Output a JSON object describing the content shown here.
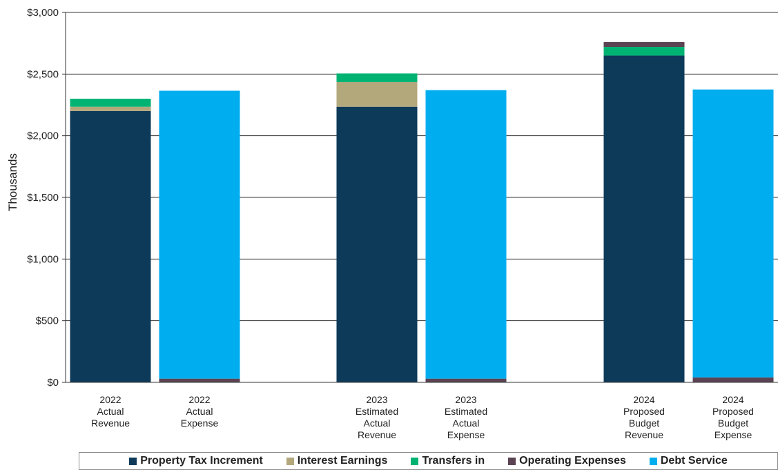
{
  "chart_data": {
    "type": "bar",
    "stacked": true,
    "ylabel": "Thousands",
    "ylim": [
      0,
      3000
    ],
    "yticks": [
      0,
      500,
      1000,
      1500,
      2000,
      2500,
      3000
    ],
    "ytick_labels": [
      "$0",
      "$500",
      "$1,000",
      "$1,500",
      "$2,000",
      "$2,500",
      "$3,000"
    ],
    "grid": true,
    "legend_position": "bottom",
    "categories": [
      [
        "2022",
        "Actual",
        "Revenue"
      ],
      [
        "2022",
        "Actual",
        "Expense"
      ],
      [
        "2023",
        "Estimated",
        "Actual",
        "Revenue"
      ],
      [
        "2023",
        "Estimated",
        "Actual",
        "Expense"
      ],
      [
        "2024",
        "Proposed",
        "Budget",
        "Revenue"
      ],
      [
        "2024",
        "Proposed",
        "Budget",
        "Expense"
      ]
    ],
    "series": [
      {
        "name": "Property Tax Increment",
        "color": "#0e3a5a",
        "values": [
          2200,
          0,
          2235,
          0,
          2650,
          0
        ]
      },
      {
        "name": "Interest Earnings",
        "color": "#b3a87c",
        "values": [
          35,
          0,
          200,
          0,
          0,
          0
        ]
      },
      {
        "name": "Transfers in",
        "color": "#00b373",
        "values": [
          65,
          0,
          70,
          0,
          70,
          0
        ]
      },
      {
        "name": "Operating Expenses",
        "color": "#5b4354",
        "values": [
          0,
          30,
          0,
          30,
          40,
          40
        ]
      },
      {
        "name": "Debt Service",
        "color": "#00aeef",
        "values": [
          0,
          2335,
          0,
          2340,
          0,
          2335
        ]
      }
    ]
  }
}
